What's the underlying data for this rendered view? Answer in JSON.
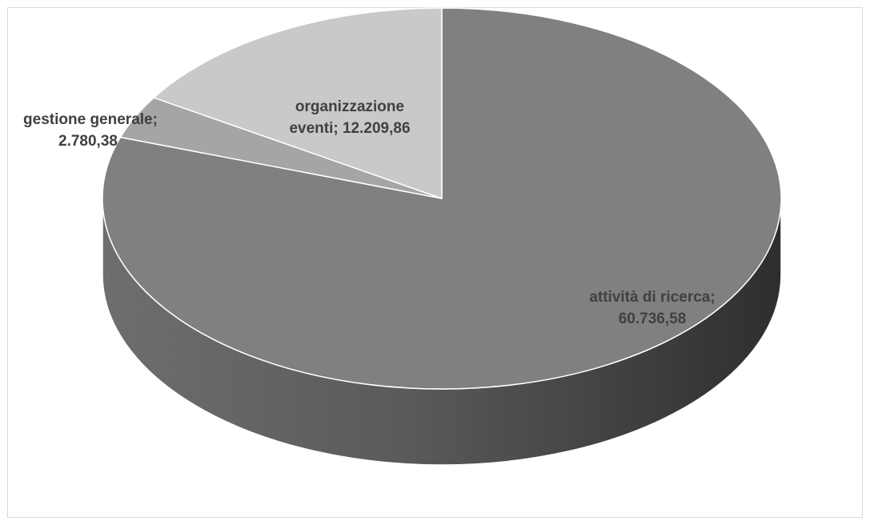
{
  "chart_data": {
    "type": "pie",
    "title": "",
    "slices": [
      {
        "label": "attività di ricerca",
        "value": 60736.58,
        "label_lines": [
          "attività di ricerca;",
          "60.736,58"
        ],
        "color": "#808080"
      },
      {
        "label": "gestione generale",
        "value": 2780.38,
        "label_lines": [
          "gestione generale;",
          "2.780,38"
        ],
        "color": "#a5a5a5"
      },
      {
        "label": "organizzazione eventi",
        "value": 12209.86,
        "label_lines": [
          "organizzazione",
          "eventi;  12.209,86"
        ],
        "color": "#c9c9c9"
      }
    ],
    "style": "3d",
    "legend": "none",
    "data_labels": "category and value"
  }
}
